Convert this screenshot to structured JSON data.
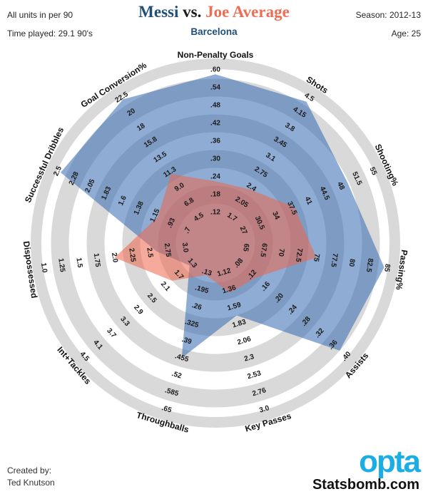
{
  "header": {
    "units_note": "All units in per 90",
    "time_played": "Time played: 29.1 90's",
    "title_player1": "Messi",
    "title_vs": "vs.",
    "title_player2": "Joe Average",
    "subtitle": "Barcelona",
    "season": "Season: 2012-13",
    "age": "Age: 25"
  },
  "footer": {
    "created_by": "Created by:",
    "author": "Ted Knutson",
    "logo_text": "opta",
    "site": "Statsbomb.com"
  },
  "colors": {
    "title_blue": "#1f4e79",
    "title_coral": "#ee6e55",
    "messi_fill": "rgba(51,106,177,0.55)",
    "joe_fill": "rgba(237,100,73,0.55)",
    "ring_gray": "#d9d9d9",
    "ring_white": "#ffffff",
    "tick_text": "#1a1a1a",
    "opta_cyan": "#1aaee5"
  },
  "chart_data": {
    "type": "radar",
    "title": "Messi vs. Joe Average",
    "rings": 9,
    "axes": [
      {
        "label": "Non-Penalty Goals",
        "ticks": [
          ".12",
          ".18",
          ".24",
          ".30",
          ".36",
          ".42",
          ".48",
          ".54",
          ".60"
        ],
        "tick_rotation": 0
      },
      {
        "label": "Shots",
        "ticks": [
          "1.7",
          "2.05",
          "2.4",
          "2.75",
          "3.1",
          "3.45",
          "3.8",
          "4.15",
          "4.5"
        ],
        "tick_rotation": 32.7
      },
      {
        "label": "Shooting%",
        "ticks": [
          "27",
          "30.5",
          "34",
          "37.5",
          "41",
          "44.5",
          "48",
          "51.5",
          "55"
        ],
        "tick_rotation": 65.5
      },
      {
        "label": "Passing%",
        "ticks": [
          "65",
          "67.5",
          "70",
          "72.5",
          "75",
          "77.5",
          "80",
          "82.5",
          "85"
        ],
        "tick_rotation": 98.2
      },
      {
        "label": "Assists",
        "ticks": [
          ".08",
          ".12",
          ".16",
          ".20",
          ".24",
          ".28",
          ".32",
          ".36",
          ".40"
        ],
        "tick_rotation": -49.1
      },
      {
        "label": "Key Passes",
        "ticks": [
          "1.12",
          "1.36",
          "1.59",
          "1.83",
          "2.06",
          "2.3",
          "2.53",
          "2.76",
          "3.0"
        ],
        "tick_rotation": -16.4
      },
      {
        "label": "Throughballs",
        "ticks": [
          ".13",
          ".195",
          ".26",
          ".325",
          ".39",
          ".455",
          ".52",
          ".585",
          ".65"
        ],
        "tick_rotation": 16.4
      },
      {
        "label": "Int+Tackles",
        "ticks": [
          "1.3",
          "1.7",
          "2.1",
          "2.5",
          "2.9",
          "3.3",
          "3.7",
          "4.1",
          "4.5"
        ],
        "tick_rotation": 49.1
      },
      {
        "label": "Dispossessed",
        "ticks": [
          "3.0",
          "2.75",
          "2.5",
          "2.25",
          "2.0",
          "1.75",
          "1.5",
          "1.25",
          "1.0"
        ],
        "tick_rotation": 81.8
      },
      {
        "label": "Successful Dribbles",
        "ticks": [
          ".7",
          ".93",
          "1.15",
          "1.38",
          "1.6",
          "1.83",
          "2.05",
          "2.28",
          "2.5"
        ],
        "tick_rotation": -65.5
      },
      {
        "label": "Goal Conversion%",
        "ticks": [
          "4.5",
          "6.8",
          "9.0",
          "11.3",
          "13.5",
          "15.8",
          "18",
          "20",
          "22.5"
        ],
        "tick_rotation": -32.7
      }
    ],
    "series": [
      {
        "name": "Messi",
        "values": [
          0.585,
          4.4,
          49.5,
          84.6,
          0.38,
          1.71,
          0.455,
          1.38,
          2.6,
          2.46,
          22.2
        ]
      },
      {
        "name": "Joe Average",
        "values": [
          0.225,
          2.35,
          38,
          75,
          0.13,
          1.4,
          0.14,
          1.9,
          2.0,
          1.11,
          11.0
        ]
      }
    ],
    "legend_position": "title-colors",
    "grid": "alternating-bands"
  }
}
